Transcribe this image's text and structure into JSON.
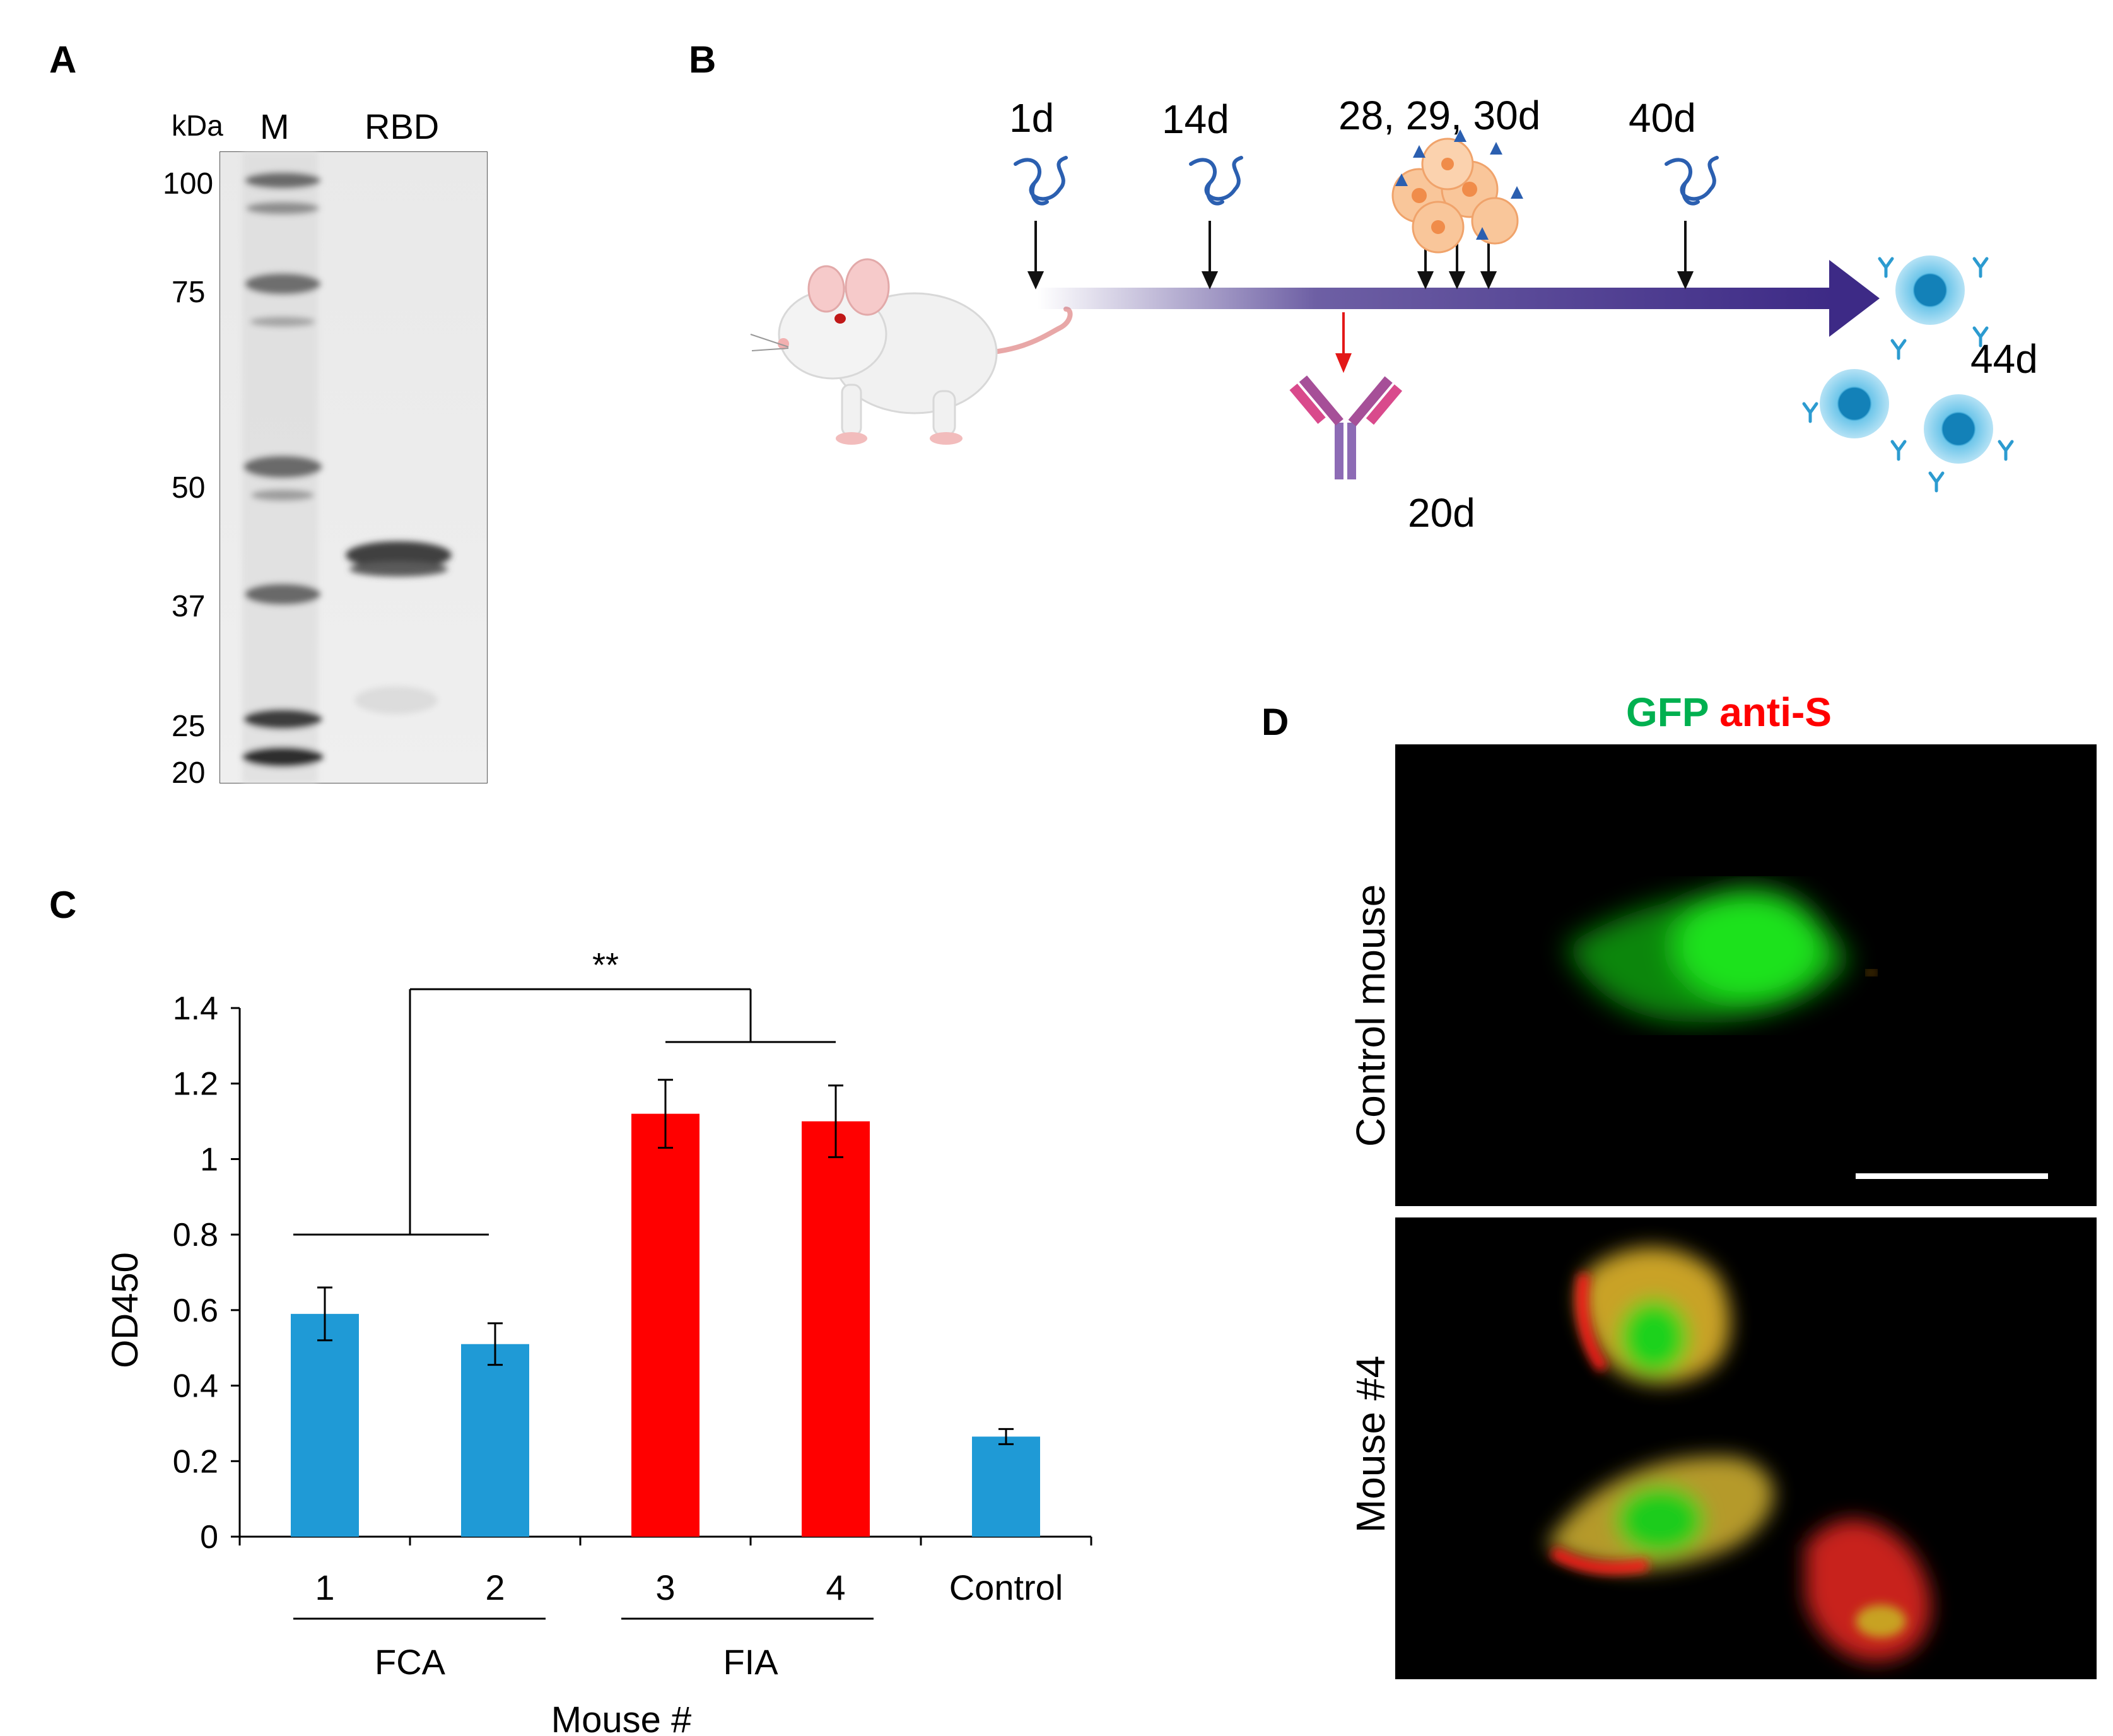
{
  "panels": {
    "A": {
      "letter": "A",
      "unit_label": "kDa",
      "lane_labels": [
        "M",
        "RBD"
      ],
      "marker_values": [
        "100",
        "75",
        "50",
        "37",
        "25",
        "20"
      ]
    },
    "B": {
      "letter": "B",
      "timepoints": [
        "1d",
        "14d",
        "28, 29, 30d",
        "40d",
        "44d",
        "20d"
      ]
    },
    "C": {
      "letter": "C",
      "significance": "**",
      "group_labels": [
        "FCA",
        "FIA"
      ],
      "colors": {
        "fca": "#1f9ad6",
        "fia": "#ff0000"
      }
    },
    "D": {
      "letter": "D",
      "legend_gfp": "GFP",
      "legend_anti_s": "anti-S",
      "legend_colors": {
        "gfp": "#00b050",
        "anti_s": "#ff0000"
      },
      "row_labels": [
        "Control mouse",
        "Mouse #4"
      ]
    }
  },
  "chart_data": {
    "type": "bar",
    "categories": [
      "1",
      "2",
      "3",
      "4",
      "Control"
    ],
    "values": [
      0.59,
      0.51,
      1.12,
      1.1,
      0.265
    ],
    "errors": [
      0.07,
      0.055,
      0.09,
      0.095,
      0.02
    ],
    "bar_colors": [
      "#1f9ad6",
      "#1f9ad6",
      "#ff0000",
      "#ff0000",
      "#1f9ad6"
    ],
    "xlabel": "Mouse #",
    "ylabel": "OD450",
    "ylim": [
      0,
      1.4
    ],
    "yticks": [
      "0",
      "0.2",
      "0.4",
      "0.6",
      "0.8",
      "1",
      "1.2",
      "1.4"
    ],
    "grid": false
  }
}
